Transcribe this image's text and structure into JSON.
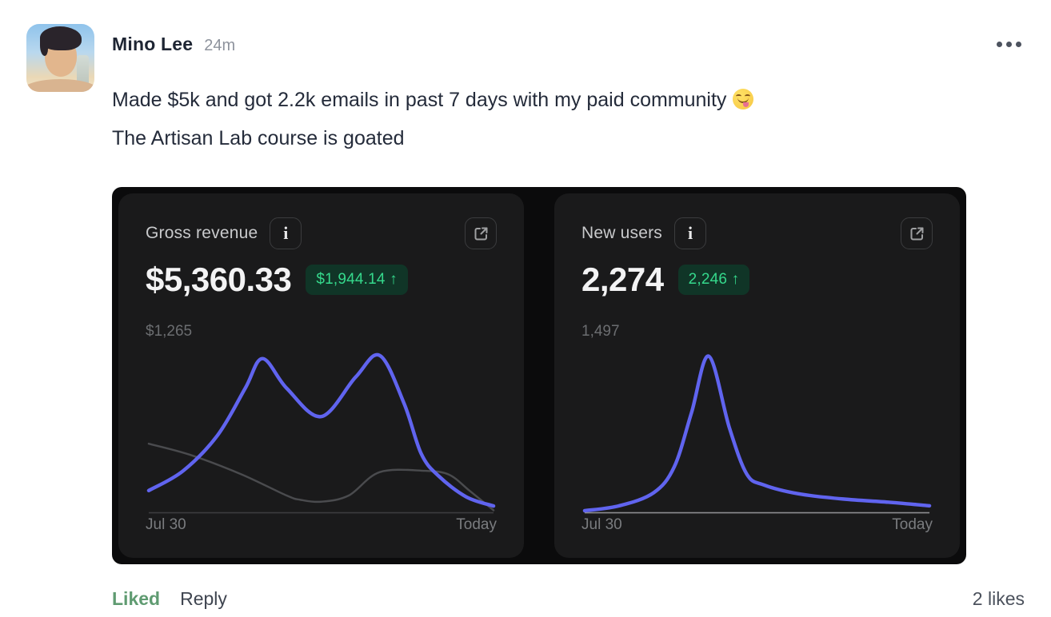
{
  "post": {
    "author": "Mino Lee",
    "timestamp": "24m",
    "body_line1": "Made $5k and got 2.2k emails in past 7 days with my paid community",
    "body_emoji": "😋",
    "body_line2": "The Artisan Lab course is goated"
  },
  "icons": {
    "info": "i",
    "external_link": "↗",
    "more": "•••",
    "up_arrow": "↑"
  },
  "footer": {
    "liked": "Liked",
    "reply": "Reply",
    "likes": "2 likes"
  },
  "colors": {
    "accent_purple": "#6064ef",
    "gray_series": "#4a4b4e",
    "badge_bg": "#103527",
    "badge_text": "#35d98c",
    "card_bg": "#1a1a1b",
    "image_bg": "#0b0b0c",
    "liked_green": "#5f9b71"
  },
  "chart_data": [
    {
      "type": "line",
      "title": "Gross revenue",
      "value": "$5,360.33",
      "change": "$1,944.14 ↑",
      "y_max_label": "$1,265",
      "y_max": 1265,
      "x_start_label": "Jul 30",
      "x_end_label": "Today",
      "baseline_color": "#3c3c3f",
      "legend": "none",
      "grid": "off",
      "series": [
        {
          "name": "previous-period",
          "color": "#4a4b4e",
          "width": 2.5,
          "points": [
            [
              0,
              550
            ],
            [
              0.12,
              460
            ],
            [
              0.27,
              300
            ],
            [
              0.4,
              130
            ],
            [
              0.44,
              95
            ],
            [
              0.5,
              80
            ],
            [
              0.58,
              130
            ],
            [
              0.67,
              320
            ],
            [
              0.8,
              330
            ],
            [
              0.87,
              300
            ],
            [
              0.93,
              170
            ],
            [
              1,
              10
            ]
          ]
        },
        {
          "name": "gross-revenue",
          "color": "#6064ef",
          "width": 4.5,
          "points": [
            [
              0,
              170
            ],
            [
              0.1,
              330
            ],
            [
              0.2,
              620
            ],
            [
              0.28,
              1000
            ],
            [
              0.33,
              1240
            ],
            [
              0.4,
              1000
            ],
            [
              0.5,
              770
            ],
            [
              0.6,
              1090
            ],
            [
              0.67,
              1265
            ],
            [
              0.74,
              880
            ],
            [
              0.79,
              470
            ],
            [
              0.84,
              290
            ],
            [
              0.92,
              120
            ],
            [
              1,
              45
            ]
          ]
        }
      ]
    },
    {
      "type": "line",
      "title": "New users",
      "value": "2,274",
      "change": "2,246 ↑",
      "y_max_label": "1,497",
      "y_max": 1497,
      "x_start_label": "Jul 30",
      "x_end_label": "Today",
      "baseline_color": "#8e8e91",
      "legend": "none",
      "grid": "off",
      "series": [
        {
          "name": "new-users",
          "color": "#6064ef",
          "width": 4.5,
          "points": [
            [
              0,
              8
            ],
            [
              0.1,
              55
            ],
            [
              0.2,
              180
            ],
            [
              0.26,
              430
            ],
            [
              0.31,
              950
            ],
            [
              0.36,
              1490
            ],
            [
              0.42,
              800
            ],
            [
              0.47,
              360
            ],
            [
              0.52,
              255
            ],
            [
              0.62,
              170
            ],
            [
              0.75,
              120
            ],
            [
              0.88,
              90
            ],
            [
              1,
              55
            ]
          ]
        }
      ]
    }
  ]
}
